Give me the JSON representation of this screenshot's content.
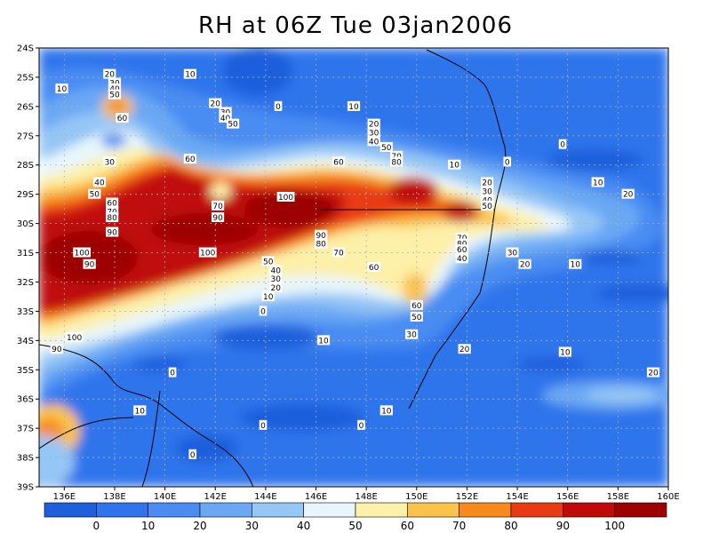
{
  "title": "RH at 06Z Tue 03jan2006",
  "map": {
    "x_ticks": [
      "136E",
      "138E",
      "140E",
      "142E",
      "144E",
      "146E",
      "148E",
      "150E",
      "152E",
      "154E",
      "156E",
      "158E",
      "160E"
    ],
    "y_ticks": [
      "24S",
      "25S",
      "26S",
      "27S",
      "28S",
      "29S",
      "30S",
      "31S",
      "32S",
      "33S",
      "34S",
      "35S",
      "36S",
      "37S",
      "38S",
      "39S"
    ],
    "lon_range": [
      135,
      160
    ],
    "lat_range": [
      -24,
      -39
    ],
    "grid": "dotted"
  },
  "colorbar": {
    "colors": [
      "#1f5fdc",
      "#2f74ec",
      "#4a8cf2",
      "#6aa8f4",
      "#94c6f6",
      "#e8f6fb",
      "#fdf0a8",
      "#fbc24c",
      "#f78a1a",
      "#e83b14",
      "#c00a0a",
      "#9c0000"
    ],
    "labels": [
      "0",
      "10",
      "20",
      "30",
      "40",
      "50",
      "60",
      "70",
      "80",
      "90",
      "100"
    ]
  },
  "contour_labels": [
    {
      "t": "10",
      "lon": 135.9,
      "lat": -25.4
    },
    {
      "t": "20",
      "lon": 137.8,
      "lat": -24.9
    },
    {
      "t": "30",
      "lon": 138.0,
      "lat": -25.2
    },
    {
      "t": "40",
      "lon": 138.0,
      "lat": -25.4
    },
    {
      "t": "50",
      "lon": 138.0,
      "lat": -25.6
    },
    {
      "t": "60",
      "lon": 138.3,
      "lat": -26.4
    },
    {
      "t": "10",
      "lon": 141.0,
      "lat": -24.9
    },
    {
      "t": "20",
      "lon": 142.0,
      "lat": -25.9
    },
    {
      "t": "30",
      "lon": 142.4,
      "lat": -26.2
    },
    {
      "t": "40",
      "lon": 142.4,
      "lat": -26.4
    },
    {
      "t": "50",
      "lon": 142.7,
      "lat": -26.6
    },
    {
      "t": "0",
      "lon": 144.5,
      "lat": -26.0
    },
    {
      "t": "10",
      "lon": 147.5,
      "lat": -26.0
    },
    {
      "t": "20",
      "lon": 148.3,
      "lat": -26.6
    },
    {
      "t": "30",
      "lon": 148.3,
      "lat": -26.9
    },
    {
      "t": "40",
      "lon": 148.3,
      "lat": -27.2
    },
    {
      "t": "50",
      "lon": 148.8,
      "lat": -27.4
    },
    {
      "t": "70",
      "lon": 149.2,
      "lat": -27.7
    },
    {
      "t": "80",
      "lon": 149.2,
      "lat": -27.9
    },
    {
      "t": "10",
      "lon": 151.5,
      "lat": -28.0
    },
    {
      "t": "0",
      "lon": 155.8,
      "lat": -27.3
    },
    {
      "t": "0",
      "lon": 153.6,
      "lat": -27.9
    },
    {
      "t": "30",
      "lon": 137.8,
      "lat": -27.9
    },
    {
      "t": "60",
      "lon": 141.0,
      "lat": -27.8
    },
    {
      "t": "60",
      "lon": 146.9,
      "lat": -27.9
    },
    {
      "t": "40",
      "lon": 137.4,
      "lat": -28.6
    },
    {
      "t": "50",
      "lon": 137.2,
      "lat": -29.0
    },
    {
      "t": "60",
      "lon": 137.9,
      "lat": -29.3
    },
    {
      "t": "70",
      "lon": 137.9,
      "lat": -29.6
    },
    {
      "t": "80",
      "lon": 137.9,
      "lat": -29.8
    },
    {
      "t": "90",
      "lon": 137.9,
      "lat": -30.3
    },
    {
      "t": "70",
      "lon": 142.1,
      "lat": -29.4
    },
    {
      "t": "90",
      "lon": 142.1,
      "lat": -29.8
    },
    {
      "t": "100",
      "lon": 144.8,
      "lat": -29.1
    },
    {
      "t": "20",
      "lon": 152.8,
      "lat": -28.6
    },
    {
      "t": "30",
      "lon": 152.8,
      "lat": -28.9
    },
    {
      "t": "40",
      "lon": 152.8,
      "lat": -29.2
    },
    {
      "t": "50",
      "lon": 152.8,
      "lat": -29.4
    },
    {
      "t": "10",
      "lon": 157.2,
      "lat": -28.6
    },
    {
      "t": "20",
      "lon": 158.4,
      "lat": -29.0
    },
    {
      "t": "90",
      "lon": 146.2,
      "lat": -30.4
    },
    {
      "t": "80",
      "lon": 146.2,
      "lat": -30.7
    },
    {
      "t": "70",
      "lon": 146.9,
      "lat": -31.0
    },
    {
      "t": "70",
      "lon": 151.8,
      "lat": -30.5
    },
    {
      "t": "80",
      "lon": 151.8,
      "lat": -30.7
    },
    {
      "t": "60",
      "lon": 151.8,
      "lat": -30.9
    },
    {
      "t": "50",
      "lon": 151.8,
      "lat": -31.2
    },
    {
      "t": "40",
      "lon": 151.8,
      "lat": -31.2
    },
    {
      "t": "30",
      "lon": 153.8,
      "lat": -31.0
    },
    {
      "t": "20",
      "lon": 154.3,
      "lat": -31.4
    },
    {
      "t": "10",
      "lon": 156.3,
      "lat": -31.4
    },
    {
      "t": "100",
      "lon": 136.7,
      "lat": -31.0
    },
    {
      "t": "90",
      "lon": 137.0,
      "lat": -31.4
    },
    {
      "t": "100",
      "lon": 141.7,
      "lat": -31.0
    },
    {
      "t": "50",
      "lon": 144.1,
      "lat": -31.3
    },
    {
      "t": "40",
      "lon": 144.4,
      "lat": -31.6
    },
    {
      "t": "30",
      "lon": 144.4,
      "lat": -31.9
    },
    {
      "t": "20",
      "lon": 144.4,
      "lat": -32.2
    },
    {
      "t": "10",
      "lon": 144.1,
      "lat": -32.5
    },
    {
      "t": "0",
      "lon": 143.9,
      "lat": -33.0
    },
    {
      "t": "60",
      "lon": 148.3,
      "lat": -31.5
    },
    {
      "t": "60",
      "lon": 150.0,
      "lat": -32.8
    },
    {
      "t": "50",
      "lon": 150.0,
      "lat": -33.2
    },
    {
      "t": "30",
      "lon": 149.8,
      "lat": -33.8
    },
    {
      "t": "100",
      "lon": 136.4,
      "lat": -33.9
    },
    {
      "t": "90",
      "lon": 135.7,
      "lat": -34.3
    },
    {
      "t": "10",
      "lon": 146.3,
      "lat": -34.0
    },
    {
      "t": "20",
      "lon": 151.9,
      "lat": -34.3
    },
    {
      "t": "10",
      "lon": 155.9,
      "lat": -34.4
    },
    {
      "t": "0",
      "lon": 140.3,
      "lat": -35.1
    },
    {
      "t": "20",
      "lon": 159.4,
      "lat": -35.1
    },
    {
      "t": "10",
      "lon": 139.0,
      "lat": -36.4
    },
    {
      "t": "10",
      "lon": 148.8,
      "lat": -36.4
    },
    {
      "t": "0",
      "lon": 143.9,
      "lat": -36.9
    },
    {
      "t": "0",
      "lon": 147.8,
      "lat": -36.9
    },
    {
      "t": "0",
      "lon": 141.1,
      "lat": -37.9
    }
  ]
}
